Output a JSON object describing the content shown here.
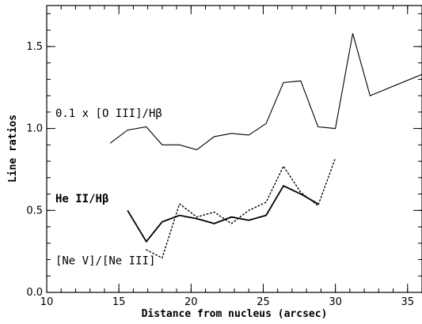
{
  "chart_data": {
    "type": "line",
    "title": "",
    "xlabel": "Distance from nucleus (arcsec)",
    "ylabel": "Line ratios",
    "xlim": [
      10,
      36
    ],
    "ylim": [
      0.0,
      1.75
    ],
    "xticks": [
      10,
      15,
      20,
      25,
      30,
      35
    ],
    "xtick_labels": [
      "10",
      "15",
      "20",
      "25",
      "30",
      "35"
    ],
    "yticks": [
      0.0,
      0.5,
      1.0,
      1.5
    ],
    "ytick_labels": [
      "0.0",
      "0.5",
      "1.0",
      "1.5"
    ],
    "x_minor_step": 1,
    "y_minor_step": 0.1,
    "grid": false,
    "legend": "none",
    "series": [
      {
        "name": "0.1 x [O III]/Hβ",
        "style": "solid",
        "color": "#000000",
        "x": [
          14.4,
          15.6,
          16.9,
          18.0,
          19.2,
          20.4,
          21.6,
          22.8,
          24.0,
          25.2,
          26.4,
          27.6,
          28.8,
          30.0,
          31.2,
          32.4,
          36.0
        ],
        "y": [
          0.91,
          0.99,
          1.01,
          0.9,
          0.9,
          0.87,
          0.95,
          0.97,
          0.96,
          1.03,
          1.28,
          1.29,
          1.01,
          1.0,
          1.58,
          1.2,
          1.33
        ]
      },
      {
        "name": "He II/Hβ",
        "style": "solid-thick",
        "color": "#000000",
        "x": [
          15.6,
          16.9,
          18.0,
          19.2,
          20.4,
          21.6,
          22.8,
          24.0,
          25.2,
          26.4,
          27.6,
          28.8
        ],
        "y": [
          0.5,
          0.31,
          0.43,
          0.47,
          0.45,
          0.42,
          0.46,
          0.44,
          0.47,
          0.65,
          0.6,
          0.54
        ]
      },
      {
        "name": "[Ne V]/[Ne III]",
        "style": "dotted",
        "color": "#000000",
        "x": [
          16.9,
          18.0,
          19.2,
          20.4,
          21.6,
          22.8,
          24.0,
          25.2,
          26.4,
          27.6,
          28.8,
          30.0
        ],
        "y": [
          0.26,
          0.21,
          0.54,
          0.46,
          0.49,
          0.42,
          0.5,
          0.55,
          0.77,
          0.61,
          0.53,
          0.82
        ]
      }
    ],
    "annotations": [
      {
        "text": "0.1 x [O III]/Hβ",
        "x": 10.6,
        "y": 1.07,
        "weight": "normal"
      },
      {
        "text": "He II/Hβ",
        "x": 10.6,
        "y": 0.55,
        "weight": "bold"
      },
      {
        "text": "[Ne V]/[Ne III]",
        "x": 10.6,
        "y": 0.17,
        "weight": "normal"
      }
    ]
  }
}
